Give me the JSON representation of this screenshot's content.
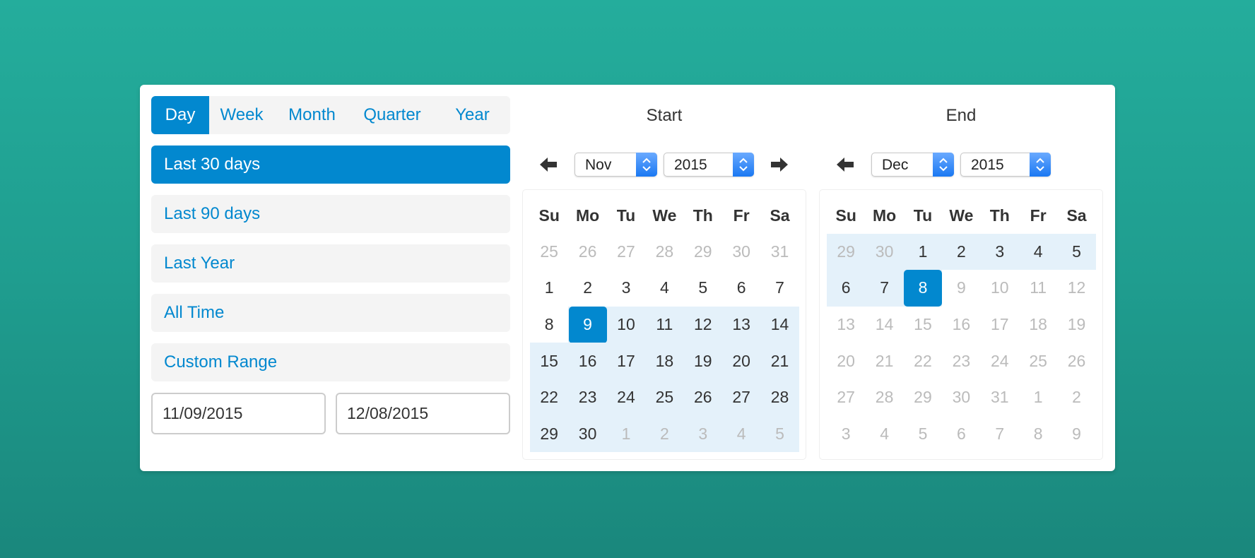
{
  "colors": {
    "accent": "#0288cf",
    "range": "#e4f1fa",
    "muted": "#bbbbbb"
  },
  "tabs": [
    {
      "label": "Day",
      "active": true
    },
    {
      "label": "Week"
    },
    {
      "label": "Month"
    },
    {
      "label": "Quarter"
    },
    {
      "label": "Year"
    }
  ],
  "presets": [
    {
      "label": "Last 30 days",
      "active": true
    },
    {
      "label": "Last 90 days"
    },
    {
      "label": "Last Year"
    },
    {
      "label": "All Time"
    },
    {
      "label": "Custom Range"
    }
  ],
  "inputs": {
    "start": "11/09/2015",
    "end": "12/08/2015"
  },
  "weekdays": [
    "Su",
    "Mo",
    "Tu",
    "We",
    "Th",
    "Fr",
    "Sa"
  ],
  "calendars": [
    {
      "title": "Start",
      "month": "Nov",
      "year": "2015",
      "icons": {
        "prev": "arrow-left-icon",
        "next": "arrow-right-icon"
      },
      "weeks": [
        [
          25,
          26,
          27,
          28,
          29,
          30,
          31
        ],
        [
          1,
          2,
          3,
          4,
          5,
          6,
          7
        ],
        [
          8,
          9,
          10,
          11,
          12,
          13,
          14
        ],
        [
          15,
          16,
          17,
          18,
          19,
          20,
          21
        ],
        [
          22,
          23,
          24,
          25,
          26,
          27,
          28
        ],
        [
          29,
          30,
          1,
          2,
          3,
          4,
          5
        ]
      ],
      "muted": [
        [
          0,
          0
        ],
        [
          0,
          1
        ],
        [
          0,
          2
        ],
        [
          0,
          3
        ],
        [
          0,
          4
        ],
        [
          0,
          5
        ],
        [
          0,
          6
        ],
        [
          5,
          2
        ],
        [
          5,
          3
        ],
        [
          5,
          4
        ],
        [
          5,
          5
        ],
        [
          5,
          6
        ]
      ],
      "selected": [
        2,
        1
      ],
      "range_from": [
        2,
        1
      ],
      "range_to": [
        5,
        6
      ]
    },
    {
      "title": "End",
      "month": "Dec",
      "year": "2015",
      "icons": {
        "prev": "arrow-left-icon"
      },
      "weeks": [
        [
          29,
          30,
          1,
          2,
          3,
          4,
          5
        ],
        [
          6,
          7,
          8,
          9,
          10,
          11,
          12
        ],
        [
          13,
          14,
          15,
          16,
          17,
          18,
          19
        ],
        [
          20,
          21,
          22,
          23,
          24,
          25,
          26
        ],
        [
          27,
          28,
          29,
          30,
          31,
          1,
          2
        ],
        [
          3,
          4,
          5,
          6,
          7,
          8,
          9
        ]
      ],
      "muted": [
        [
          0,
          0
        ],
        [
          0,
          1
        ],
        [
          1,
          3
        ],
        [
          1,
          4
        ],
        [
          1,
          5
        ],
        [
          1,
          6
        ],
        [
          2,
          0
        ],
        [
          2,
          1
        ],
        [
          2,
          2
        ],
        [
          2,
          3
        ],
        [
          2,
          4
        ],
        [
          2,
          5
        ],
        [
          2,
          6
        ],
        [
          3,
          0
        ],
        [
          3,
          1
        ],
        [
          3,
          2
        ],
        [
          3,
          3
        ],
        [
          3,
          4
        ],
        [
          3,
          5
        ],
        [
          3,
          6
        ],
        [
          4,
          0
        ],
        [
          4,
          1
        ],
        [
          4,
          2
        ],
        [
          4,
          3
        ],
        [
          4,
          4
        ],
        [
          4,
          5
        ],
        [
          4,
          6
        ],
        [
          5,
          0
        ],
        [
          5,
          1
        ],
        [
          5,
          2
        ],
        [
          5,
          3
        ],
        [
          5,
          4
        ],
        [
          5,
          5
        ],
        [
          5,
          6
        ]
      ],
      "selected": [
        1,
        2
      ],
      "range_from": [
        0,
        0
      ],
      "range_to": [
        1,
        2
      ]
    }
  ]
}
